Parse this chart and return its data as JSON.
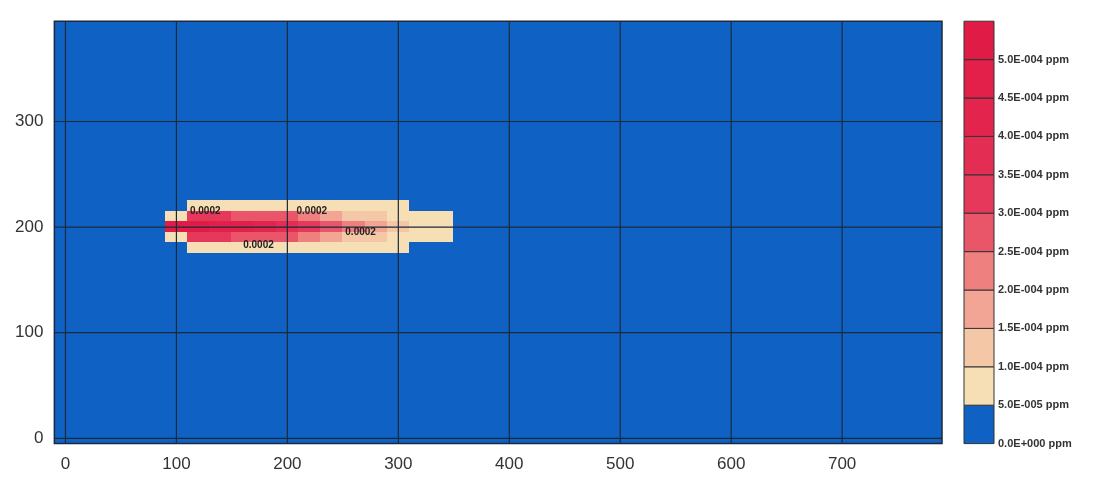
{
  "chart_data": {
    "type": "heatmap",
    "categories": [
      "0",
      null,
      null,
      null,
      null,
      "100",
      null,
      null,
      null,
      null,
      "200",
      null,
      null,
      null,
      null,
      "300",
      null,
      null,
      null,
      null,
      "400",
      null,
      null,
      null,
      null,
      "500",
      null,
      null,
      null,
      null,
      "600",
      null,
      null,
      null,
      null,
      "700",
      null,
      null,
      null,
      null
    ],
    "y_categories": [
      null,
      null,
      null,
      null,
      null,
      null,
      null,
      null,
      null,
      "300",
      null,
      null,
      null,
      null,
      null,
      null,
      null,
      null,
      null,
      "200",
      null,
      null,
      null,
      null,
      null,
      null,
      null,
      null,
      null,
      "100",
      null,
      null,
      null,
      null,
      null,
      null,
      null,
      null,
      null,
      "0"
    ],
    "grid": true,
    "clim": [
      0,
      0.00055
    ],
    "cticks": [
      {
        "value": 0,
        "label": "0.0E+000 ppm"
      },
      {
        "value": 5e-05,
        "label": "5.0E-005 ppm"
      },
      {
        "value": 0.0001,
        "label": "1.0E-004 ppm"
      },
      {
        "value": 0.00015,
        "label": "1.5E-004 ppm"
      },
      {
        "value": 0.0002,
        "label": "2.0E-004 ppm"
      },
      {
        "value": 0.00025,
        "label": "2.5E-004 ppm"
      },
      {
        "value": 0.0003,
        "label": "3.0E-004 ppm"
      },
      {
        "value": 0.00035,
        "label": "3.5E-004 ppm"
      },
      {
        "value": 0.0004,
        "label": "4.0E-004 ppm"
      },
      {
        "value": 0.00045,
        "label": "4.5E-004 ppm"
      },
      {
        "value": 0.0005,
        "label": "5.0E-004 ppm"
      }
    ],
    "colors": [
      "#0f62c4",
      "#f6dfb4",
      "#f4c7a6",
      "#f2a595",
      "#ee8080",
      "#e9566a",
      "#e6385a",
      "#e42d52",
      "#e3254d",
      "#e22049",
      "#e01b45"
    ],
    "annotations": [
      "0.0002",
      "0.0002",
      "0.0002",
      "0.0002"
    ],
    "cells": [
      [
        0,
        0,
        0,
        0,
        0,
        0,
        0,
        0,
        0,
        0,
        0,
        0,
        0,
        0,
        0,
        0,
        0,
        0,
        0,
        0,
        0,
        0,
        0,
        0,
        0,
        0,
        0,
        0,
        0,
        0,
        0,
        0,
        0,
        0,
        0,
        0,
        0,
        0,
        0,
        0
      ],
      [
        0,
        0,
        0,
        0,
        0,
        0,
        0,
        0,
        0,
        0,
        0,
        0,
        0,
        0,
        0,
        0,
        0,
        0,
        0,
        0,
        0,
        0,
        0,
        0,
        0,
        0,
        0,
        0,
        0,
        0,
        0,
        0,
        0,
        0,
        0,
        0,
        0,
        0,
        0,
        0
      ],
      [
        0,
        0,
        0,
        0,
        0,
        0,
        0,
        0,
        0,
        0,
        0,
        0,
        0,
        0,
        0,
        0,
        0,
        0,
        0,
        0,
        0,
        0,
        0,
        0,
        0,
        0,
        0,
        0,
        0,
        0,
        0,
        0,
        0,
        0,
        0,
        0,
        0,
        0,
        0,
        0
      ],
      [
        0,
        0,
        0,
        0,
        0,
        0,
        0,
        0,
        0,
        0,
        0,
        0,
        0,
        0,
        0,
        0,
        0,
        0,
        0,
        0,
        0,
        0,
        0,
        0,
        0,
        0,
        0,
        0,
        0,
        0,
        0,
        0,
        0,
        0,
        0,
        0,
        0,
        0,
        0,
        0
      ],
      [
        0,
        0,
        0,
        0,
        0,
        0,
        0,
        0,
        0,
        0,
        0,
        0,
        0,
        0,
        0,
        0,
        0,
        0,
        0,
        0,
        0,
        0,
        0,
        0,
        0,
        0,
        0,
        0,
        0,
        0,
        0,
        0,
        0,
        0,
        0,
        0,
        0,
        0,
        0,
        0
      ],
      [
        0,
        0,
        0,
        0,
        0,
        0,
        0,
        0,
        0,
        0,
        0,
        0,
        0,
        0,
        0,
        0,
        0,
        0,
        0,
        0,
        0,
        0,
        0,
        0,
        0,
        0,
        0,
        0,
        0,
        0,
        0,
        0,
        0,
        0,
        0,
        0,
        0,
        0,
        0,
        0
      ],
      [
        0,
        0,
        0,
        0,
        0,
        0,
        0,
        0,
        0,
        0,
        0,
        0,
        0,
        0,
        0,
        0,
        0,
        0,
        0,
        0,
        0,
        0,
        0,
        0,
        0,
        0,
        0,
        0,
        0,
        0,
        0,
        0,
        0,
        0,
        0,
        0,
        0,
        0,
        0,
        0
      ],
      [
        0,
        0,
        0,
        0,
        0,
        0,
        0,
        0,
        0,
        0,
        0,
        0,
        0,
        0,
        0,
        0,
        0,
        0,
        0,
        0,
        0,
        0,
        0,
        0,
        0,
        0,
        0,
        0,
        0,
        0,
        0,
        0,
        0,
        0,
        0,
        0,
        0,
        0,
        0,
        0
      ],
      [
        0,
        0,
        0,
        0,
        0,
        0,
        0,
        0,
        0,
        0,
        0,
        0,
        0,
        0,
        0,
        0,
        0,
        0,
        0,
        0,
        0,
        0,
        0,
        0,
        0,
        0,
        0,
        0,
        0,
        0,
        0,
        0,
        0,
        0,
        0,
        0,
        0,
        0,
        0,
        0
      ],
      [
        0,
        0,
        0,
        0,
        0,
        0,
        0,
        0,
        0,
        0,
        0,
        0,
        0,
        0,
        0,
        0,
        0,
        0,
        0,
        0,
        0,
        0,
        0,
        0,
        0,
        0,
        0,
        0,
        0,
        0,
        0,
        0,
        0,
        0,
        0,
        0,
        0,
        0,
        0,
        0
      ],
      [
        0,
        0,
        0,
        0,
        0,
        0,
        0,
        0,
        0,
        0,
        0,
        0,
        0,
        0,
        0,
        0,
        0,
        0,
        0,
        0,
        0,
        0,
        0,
        0,
        0,
        0,
        0,
        0,
        0,
        0,
        0,
        0,
        0,
        0,
        0,
        0,
        0,
        0,
        0,
        0
      ],
      [
        0,
        0,
        0,
        0,
        0,
        0,
        0,
        0,
        0,
        0,
        0,
        0,
        0,
        0,
        0,
        0,
        0,
        0,
        0,
        0,
        0,
        0,
        0,
        0,
        0,
        0,
        0,
        0,
        0,
        0,
        0,
        0,
        0,
        0,
        0,
        0,
        0,
        0,
        0,
        0
      ],
      [
        0,
        0,
        0,
        0,
        0,
        0,
        0,
        0,
        0,
        0,
        0,
        0,
        0,
        0,
        0,
        0,
        0,
        0,
        0,
        0,
        0,
        0,
        0,
        0,
        0,
        0,
        0,
        0,
        0,
        0,
        0,
        0,
        0,
        0,
        0,
        0,
        0,
        0,
        0,
        0
      ],
      [
        0,
        0,
        0,
        0,
        0,
        0,
        0,
        0,
        0,
        0,
        0,
        0,
        0,
        0,
        0,
        0,
        0,
        0,
        0,
        0,
        0,
        0,
        0,
        0,
        0,
        0,
        0,
        0,
        0,
        0,
        0,
        0,
        0,
        0,
        0,
        0,
        0,
        0,
        0,
        0
      ],
      [
        0,
        0,
        0,
        0,
        0,
        0,
        0,
        0,
        0,
        0,
        0,
        0,
        0,
        0,
        0,
        0,
        0,
        0,
        0,
        0,
        0,
        0,
        0,
        0,
        0,
        0,
        0,
        0,
        0,
        0,
        0,
        0,
        0,
        0,
        0,
        0,
        0,
        0,
        0,
        0
      ],
      [
        0,
        0,
        0,
        0,
        0,
        0,
        0,
        0,
        0,
        0,
        0,
        0,
        0,
        0,
        0,
        0,
        0,
        0,
        0,
        0,
        0,
        0,
        0,
        0,
        0,
        0,
        0,
        0,
        0,
        0,
        0,
        0,
        0,
        0,
        0,
        0,
        0,
        0,
        0,
        0
      ],
      [
        0,
        0,
        0,
        0,
        0,
        0,
        0,
        0,
        0,
        0,
        0,
        0,
        0,
        0,
        0,
        0,
        0,
        0,
        0,
        0,
        0,
        0,
        0,
        0,
        0,
        0,
        0,
        0,
        0,
        0,
        0,
        0,
        0,
        0,
        0,
        0,
        0,
        0,
        0,
        0
      ],
      [
        0,
        0,
        0,
        0,
        0,
        0,
        7.5e-05,
        7.5e-05,
        7.5e-05,
        7.5e-05,
        7.5e-05,
        7.5e-05,
        7.5e-05,
        7.5e-05,
        7.5e-05,
        7.5e-05,
        0,
        0,
        0,
        0,
        0,
        0,
        0,
        0,
        0,
        0,
        0,
        0,
        0,
        0,
        0,
        0,
        0,
        0,
        0,
        0,
        0,
        0,
        0,
        0
      ],
      [
        0,
        0,
        0,
        0,
        0,
        7.5e-05,
        0.000325,
        0.000325,
        0.000275,
        0.000275,
        0.000275,
        0.000225,
        0.000175,
        0.000125,
        0.000125,
        7.5e-05,
        7.5e-05,
        7.5e-05,
        0,
        0,
        0,
        0,
        0,
        0,
        0,
        0,
        0,
        0,
        0,
        0,
        0,
        0,
        0,
        0,
        0,
        0,
        0,
        0,
        0,
        0
      ],
      [
        0,
        0,
        0,
        0,
        0,
        0.000525,
        0.000525,
        0.000475,
        0.000475,
        0.000425,
        0.000375,
        0.000325,
        0.000275,
        0.000225,
        0.000175,
        0.000125,
        7.5e-05,
        7.5e-05,
        0,
        0,
        0,
        0,
        0,
        0,
        0,
        0,
        0,
        0,
        0,
        0,
        0,
        0,
        0,
        0,
        0,
        0,
        0,
        0,
        0,
        0
      ],
      [
        0,
        0,
        0,
        0,
        0,
        7.5e-05,
        0.000325,
        0.000325,
        0.000275,
        0.000275,
        0.000275,
        0.000225,
        0.000175,
        0.000125,
        0.000125,
        7.5e-05,
        7.5e-05,
        7.5e-05,
        0,
        0,
        0,
        0,
        0,
        0,
        0,
        0,
        0,
        0,
        0,
        0,
        0,
        0,
        0,
        0,
        0,
        0,
        0,
        0,
        0,
        0
      ],
      [
        0,
        0,
        0,
        0,
        0,
        0,
        7.5e-05,
        7.5e-05,
        7.5e-05,
        7.5e-05,
        7.5e-05,
        7.5e-05,
        7.5e-05,
        7.5e-05,
        7.5e-05,
        7.5e-05,
        0,
        0,
        0,
        0,
        0,
        0,
        0,
        0,
        0,
        0,
        0,
        0,
        0,
        0,
        0,
        0,
        0,
        0,
        0,
        0,
        0,
        0,
        0,
        0
      ],
      [
        0,
        0,
        0,
        0,
        0,
        0,
        0,
        0,
        0,
        0,
        0,
        0,
        0,
        0,
        0,
        0,
        0,
        0,
        0,
        0,
        0,
        0,
        0,
        0,
        0,
        0,
        0,
        0,
        0,
        0,
        0,
        0,
        0,
        0,
        0,
        0,
        0,
        0,
        0,
        0
      ],
      [
        0,
        0,
        0,
        0,
        0,
        0,
        0,
        0,
        0,
        0,
        0,
        0,
        0,
        0,
        0,
        0,
        0,
        0,
        0,
        0,
        0,
        0,
        0,
        0,
        0,
        0,
        0,
        0,
        0,
        0,
        0,
        0,
        0,
        0,
        0,
        0,
        0,
        0,
        0,
        0
      ],
      [
        0,
        0,
        0,
        0,
        0,
        0,
        0,
        0,
        0,
        0,
        0,
        0,
        0,
        0,
        0,
        0,
        0,
        0,
        0,
        0,
        0,
        0,
        0,
        0,
        0,
        0,
        0,
        0,
        0,
        0,
        0,
        0,
        0,
        0,
        0,
        0,
        0,
        0,
        0,
        0
      ],
      [
        0,
        0,
        0,
        0,
        0,
        0,
        0,
        0,
        0,
        0,
        0,
        0,
        0,
        0,
        0,
        0,
        0,
        0,
        0,
        0,
        0,
        0,
        0,
        0,
        0,
        0,
        0,
        0,
        0,
        0,
        0,
        0,
        0,
        0,
        0,
        0,
        0,
        0,
        0,
        0
      ],
      [
        0,
        0,
        0,
        0,
        0,
        0,
        0,
        0,
        0,
        0,
        0,
        0,
        0,
        0,
        0,
        0,
        0,
        0,
        0,
        0,
        0,
        0,
        0,
        0,
        0,
        0,
        0,
        0,
        0,
        0,
        0,
        0,
        0,
        0,
        0,
        0,
        0,
        0,
        0,
        0
      ],
      [
        0,
        0,
        0,
        0,
        0,
        0,
        0,
        0,
        0,
        0,
        0,
        0,
        0,
        0,
        0,
        0,
        0,
        0,
        0,
        0,
        0,
        0,
        0,
        0,
        0,
        0,
        0,
        0,
        0,
        0,
        0,
        0,
        0,
        0,
        0,
        0,
        0,
        0,
        0,
        0
      ],
      [
        0,
        0,
        0,
        0,
        0,
        0,
        0,
        0,
        0,
        0,
        0,
        0,
        0,
        0,
        0,
        0,
        0,
        0,
        0,
        0,
        0,
        0,
        0,
        0,
        0,
        0,
        0,
        0,
        0,
        0,
        0,
        0,
        0,
        0,
        0,
        0,
        0,
        0,
        0,
        0
      ],
      [
        0,
        0,
        0,
        0,
        0,
        0,
        0,
        0,
        0,
        0,
        0,
        0,
        0,
        0,
        0,
        0,
        0,
        0,
        0,
        0,
        0,
        0,
        0,
        0,
        0,
        0,
        0,
        0,
        0,
        0,
        0,
        0,
        0,
        0,
        0,
        0,
        0,
        0,
        0,
        0
      ],
      [
        0,
        0,
        0,
        0,
        0,
        0,
        0,
        0,
        0,
        0,
        0,
        0,
        0,
        0,
        0,
        0,
        0,
        0,
        0,
        0,
        0,
        0,
        0,
        0,
        0,
        0,
        0,
        0,
        0,
        0,
        0,
        0,
        0,
        0,
        0,
        0,
        0,
        0,
        0,
        0
      ],
      [
        0,
        0,
        0,
        0,
        0,
        0,
        0,
        0,
        0,
        0,
        0,
        0,
        0,
        0,
        0,
        0,
        0,
        0,
        0,
        0,
        0,
        0,
        0,
        0,
        0,
        0,
        0,
        0,
        0,
        0,
        0,
        0,
        0,
        0,
        0,
        0,
        0,
        0,
        0,
        0
      ],
      [
        0,
        0,
        0,
        0,
        0,
        0,
        0,
        0,
        0,
        0,
        0,
        0,
        0,
        0,
        0,
        0,
        0,
        0,
        0,
        0,
        0,
        0,
        0,
        0,
        0,
        0,
        0,
        0,
        0,
        0,
        0,
        0,
        0,
        0,
        0,
        0,
        0,
        0,
        0,
        0
      ],
      [
        0,
        0,
        0,
        0,
        0,
        0,
        0,
        0,
        0,
        0,
        0,
        0,
        0,
        0,
        0,
        0,
        0,
        0,
        0,
        0,
        0,
        0,
        0,
        0,
        0,
        0,
        0,
        0,
        0,
        0,
        0,
        0,
        0,
        0,
        0,
        0,
        0,
        0,
        0,
        0
      ],
      [
        0,
        0,
        0,
        0,
        0,
        0,
        0,
        0,
        0,
        0,
        0,
        0,
        0,
        0,
        0,
        0,
        0,
        0,
        0,
        0,
        0,
        0,
        0,
        0,
        0,
        0,
        0,
        0,
        0,
        0,
        0,
        0,
        0,
        0,
        0,
        0,
        0,
        0,
        0,
        0
      ],
      [
        0,
        0,
        0,
        0,
        0,
        0,
        0,
        0,
        0,
        0,
        0,
        0,
        0,
        0,
        0,
        0,
        0,
        0,
        0,
        0,
        0,
        0,
        0,
        0,
        0,
        0,
        0,
        0,
        0,
        0,
        0,
        0,
        0,
        0,
        0,
        0,
        0,
        0,
        0,
        0
      ],
      [
        0,
        0,
        0,
        0,
        0,
        0,
        0,
        0,
        0,
        0,
        0,
        0,
        0,
        0,
        0,
        0,
        0,
        0,
        0,
        0,
        0,
        0,
        0,
        0,
        0,
        0,
        0,
        0,
        0,
        0,
        0,
        0,
        0,
        0,
        0,
        0,
        0,
        0,
        0,
        0
      ],
      [
        0,
        0,
        0,
        0,
        0,
        0,
        0,
        0,
        0,
        0,
        0,
        0,
        0,
        0,
        0,
        0,
        0,
        0,
        0,
        0,
        0,
        0,
        0,
        0,
        0,
        0,
        0,
        0,
        0,
        0,
        0,
        0,
        0,
        0,
        0,
        0,
        0,
        0,
        0,
        0
      ],
      [
        0,
        0,
        0,
        0,
        0,
        0,
        0,
        0,
        0,
        0,
        0,
        0,
        0,
        0,
        0,
        0,
        0,
        0,
        0,
        0,
        0,
        0,
        0,
        0,
        0,
        0,
        0,
        0,
        0,
        0,
        0,
        0,
        0,
        0,
        0,
        0,
        0,
        0,
        0,
        0
      ],
      [
        0,
        0,
        0,
        0,
        0,
        0,
        0,
        0,
        0,
        0,
        0,
        0,
        0,
        0,
        0,
        0,
        0,
        0,
        0,
        0,
        0,
        0,
        0,
        0,
        0,
        0,
        0,
        0,
        0,
        0,
        0,
        0,
        0,
        0,
        0,
        0,
        0,
        0,
        0,
        0
      ]
    ]
  }
}
